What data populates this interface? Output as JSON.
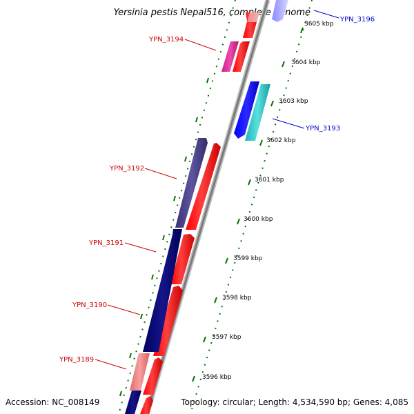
{
  "title": "Yersinia pestis Nepal516, complete genome",
  "footer": {
    "accession": "Accession: NC_008149",
    "topology": "Topology: circular; Length: 4,534,590 bp; Genes: 4,085"
  },
  "scale_labels": [
    "3605 kbp",
    "3604 kbp",
    "3603 kbp",
    "3602 kbp",
    "3601 kbp",
    "3600 kbp",
    "3599 kbp",
    "3598 kbp",
    "3597 kbp",
    "3596 kbp"
  ],
  "gene_labels": [
    {
      "name": "YPN_3196",
      "color": "#0000cc"
    },
    {
      "name": "YPN_3194",
      "color": "#cc0000"
    },
    {
      "name": "YPN_3193",
      "color": "#0000cc"
    },
    {
      "name": "YPN_3192",
      "color": "#cc0000"
    },
    {
      "name": "YPN_3191",
      "color": "#cc0000"
    },
    {
      "name": "YPN_3190",
      "color": "#cc0000"
    },
    {
      "name": "YPN_3189",
      "color": "#cc0000"
    }
  ],
  "colors": {
    "backbone": "#888888",
    "forward_cds": "#ff0000",
    "reverse_cds": "#0000ff",
    "cog_magenta": "#e0249a",
    "cog_cyan": "#22cccc",
    "cog_slate": "#4b3f8a",
    "cog_navy": "#0a0a7a",
    "cog_salmon": "#f08080",
    "tick": "#006600"
  }
}
